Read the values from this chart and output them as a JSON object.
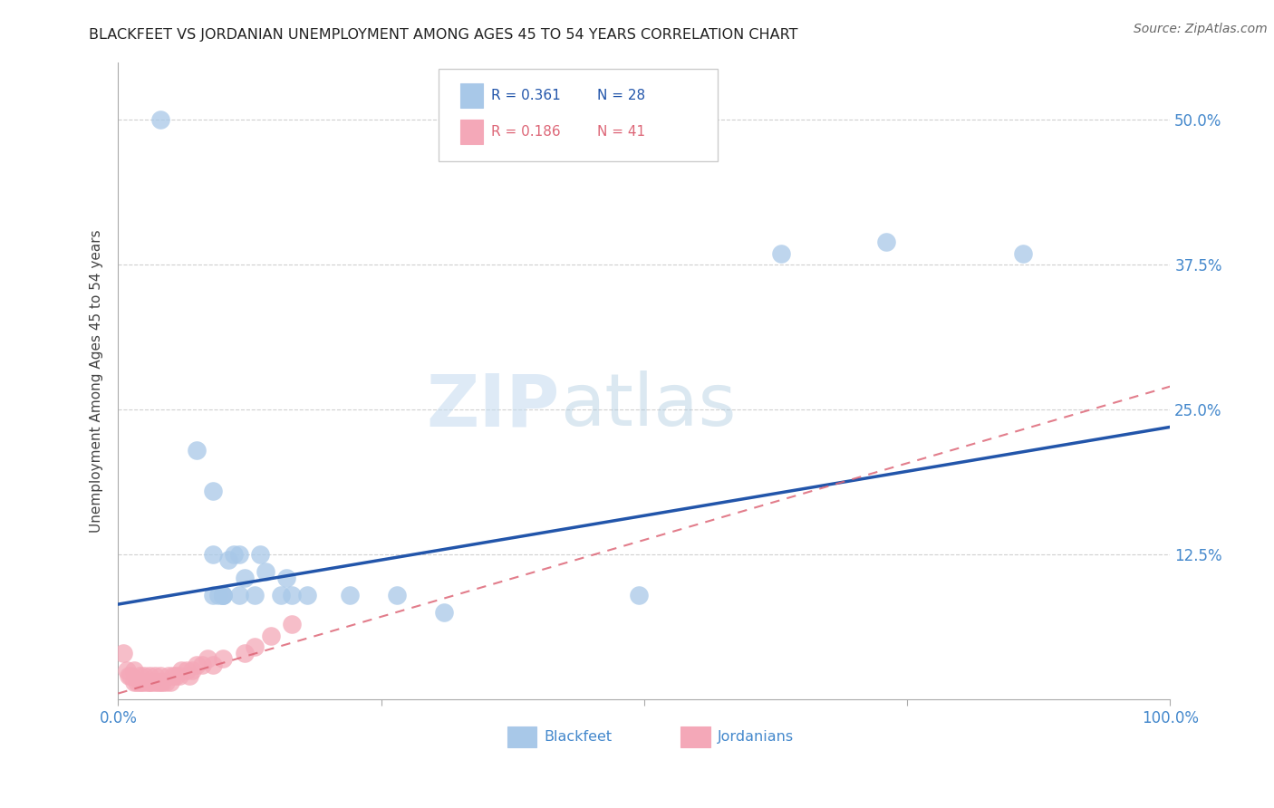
{
  "title": "BLACKFEET VS JORDANIAN UNEMPLOYMENT AMONG AGES 45 TO 54 YEARS CORRELATION CHART",
  "source": "Source: ZipAtlas.com",
  "ylabel": "Unemployment Among Ages 45 to 54 years",
  "xlim": [
    0.0,
    1.0
  ],
  "ylim": [
    0.0,
    0.55
  ],
  "xticks": [
    0.0,
    0.25,
    0.5,
    0.75,
    1.0
  ],
  "xticklabels": [
    "0.0%",
    "",
    "",
    "",
    "100.0%"
  ],
  "yticks": [
    0.125,
    0.25,
    0.375,
    0.5
  ],
  "yticklabels": [
    "12.5%",
    "25.0%",
    "37.5%",
    "50.0%"
  ],
  "legend_r_blackfeet": "R = 0.361",
  "legend_n_blackfeet": "N = 28",
  "legend_r_jordanian": "R = 0.186",
  "legend_n_jordanian": "N = 41",
  "blackfeet_color": "#a8c8e8",
  "jordanian_color": "#f4a8b8",
  "blackfeet_line_color": "#2255aa",
  "jordanian_line_color": "#dd6677",
  "blackfeet_x": [
    0.04,
    0.075,
    0.09,
    0.09,
    0.09,
    0.095,
    0.1,
    0.1,
    0.1,
    0.105,
    0.11,
    0.115,
    0.115,
    0.12,
    0.13,
    0.135,
    0.14,
    0.155,
    0.16,
    0.165,
    0.18,
    0.22,
    0.265,
    0.31,
    0.495,
    0.63,
    0.73,
    0.86
  ],
  "blackfeet_y": [
    0.5,
    0.215,
    0.18,
    0.125,
    0.09,
    0.09,
    0.09,
    0.09,
    0.09,
    0.12,
    0.125,
    0.125,
    0.09,
    0.105,
    0.09,
    0.125,
    0.11,
    0.09,
    0.105,
    0.09,
    0.09,
    0.09,
    0.09,
    0.075,
    0.09,
    0.385,
    0.395,
    0.385
  ],
  "jordanian_x": [
    0.005,
    0.008,
    0.01,
    0.012,
    0.015,
    0.015,
    0.018,
    0.02,
    0.02,
    0.022,
    0.025,
    0.025,
    0.028,
    0.03,
    0.03,
    0.032,
    0.035,
    0.035,
    0.038,
    0.04,
    0.04,
    0.042,
    0.045,
    0.048,
    0.05,
    0.052,
    0.055,
    0.058,
    0.06,
    0.065,
    0.068,
    0.07,
    0.075,
    0.08,
    0.085,
    0.09,
    0.1,
    0.12,
    0.13,
    0.145,
    0.165
  ],
  "jordanian_y": [
    0.04,
    0.025,
    0.02,
    0.02,
    0.015,
    0.025,
    0.015,
    0.015,
    0.02,
    0.015,
    0.015,
    0.02,
    0.015,
    0.015,
    0.02,
    0.015,
    0.015,
    0.02,
    0.015,
    0.015,
    0.02,
    0.015,
    0.015,
    0.02,
    0.015,
    0.02,
    0.02,
    0.02,
    0.025,
    0.025,
    0.02,
    0.025,
    0.03,
    0.03,
    0.035,
    0.03,
    0.035,
    0.04,
    0.045,
    0.055,
    0.065
  ],
  "blackfeet_line_x": [
    0.0,
    1.0
  ],
  "blackfeet_line_y": [
    0.082,
    0.235
  ],
  "jordanian_line_x": [
    0.0,
    1.0
  ],
  "jordanian_line_y": [
    0.005,
    0.27
  ],
  "watermark_zip": "ZIP",
  "watermark_atlas": "atlas",
  "background_color": "#ffffff",
  "grid_color": "#d0d0d0",
  "tick_color": "#4488cc",
  "title_color": "#222222",
  "source_color": "#666666"
}
